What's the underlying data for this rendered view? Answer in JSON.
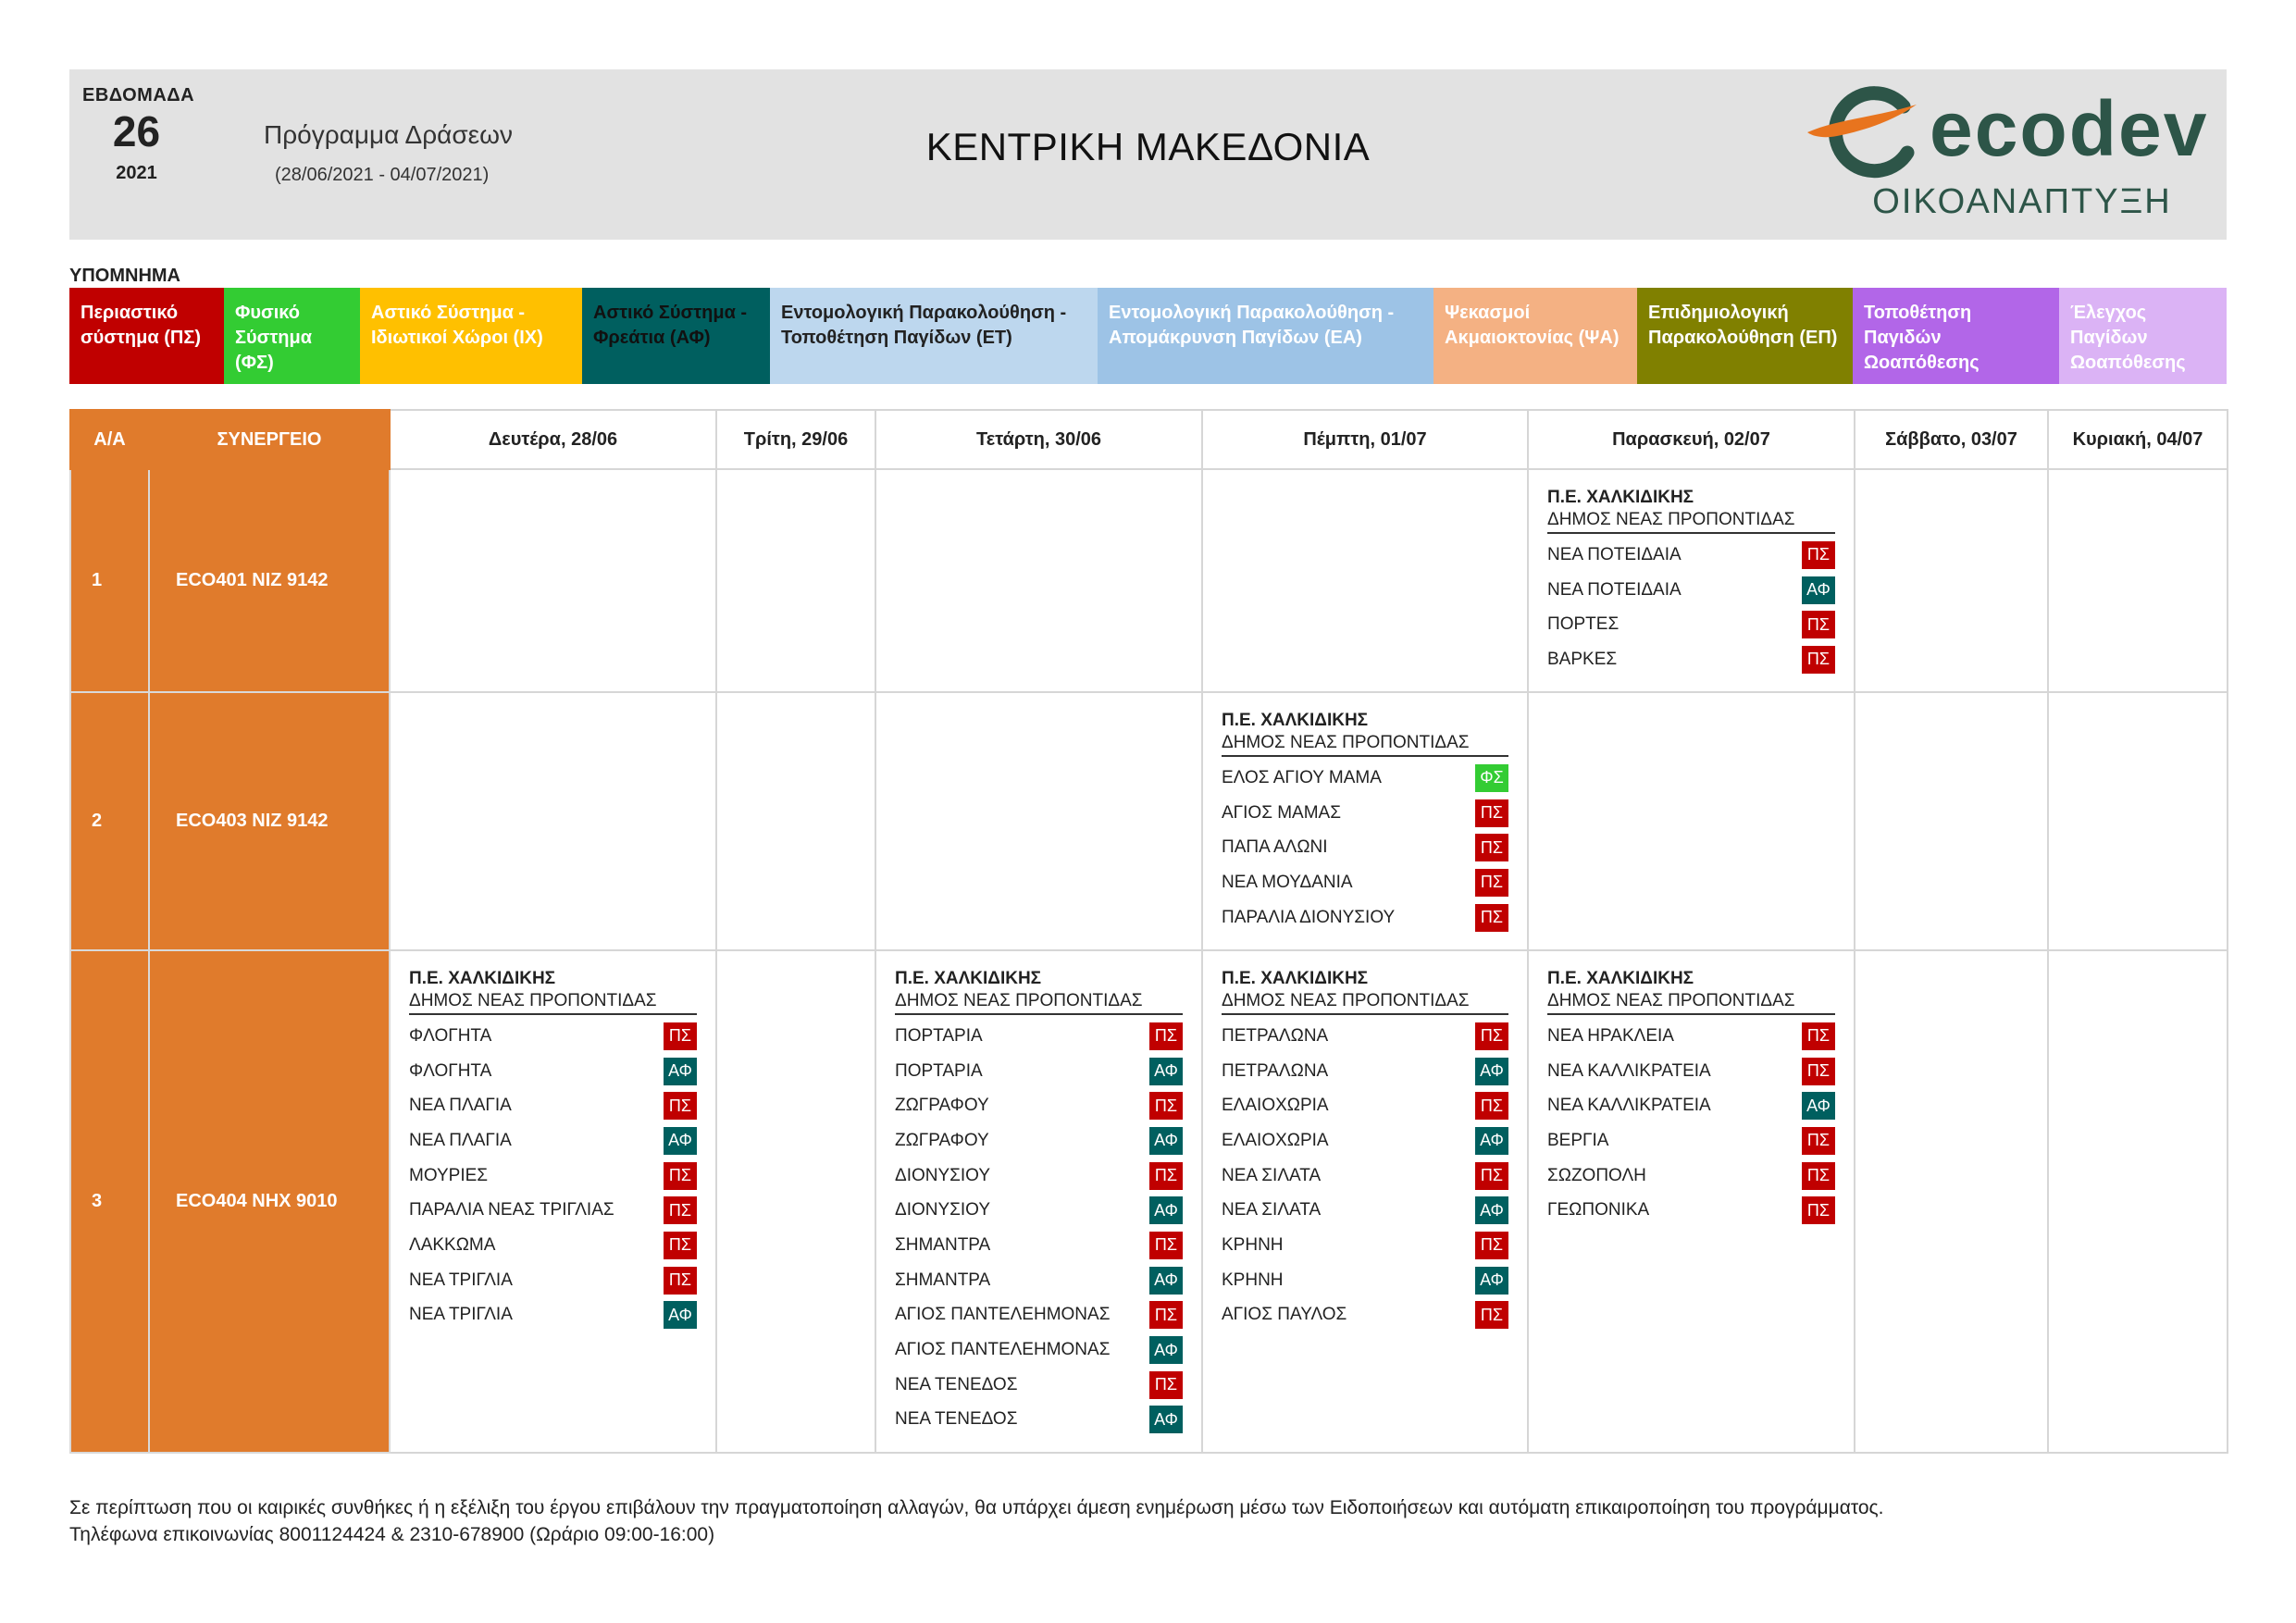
{
  "header": {
    "week_label": "ΕΒΔΟΜΑΔΑ",
    "week_number": "26",
    "year": "2021",
    "program_title": "Πρόγραμμα Δράσεων",
    "date_range": "(28/06/2021 - 04/07/2021)",
    "region": "ΚΕΝΤΡΙΚΗ ΜΑΚΕΔΟΝΙΑ",
    "logo_text": "ecodev",
    "logo_subtitle": "ΟΙΚΟΑΝΑΠΤΥΞΗ"
  },
  "legend": {
    "title": "ΥΠΟΜΝΗΜΑ",
    "items": [
      {
        "label": "Περιαστικό σύστημα (ΠΣ)",
        "bg": "#c00000",
        "fg": "#ffffff"
      },
      {
        "label": "Φυσικό Σύστημα (ΦΣ)",
        "bg": "#33cc33",
        "fg": "#ffffff"
      },
      {
        "label": "Αστικό Σύστημα - Ιδιωτικοί Χώροι (ΙΧ)",
        "bg": "#ffc000",
        "fg": "#ffffff"
      },
      {
        "label": "Αστικό Σύστημα - Φρεάτια (ΑΦ)",
        "bg": "#005f5f",
        "fg": "#111111"
      },
      {
        "label": "Εντομολογική Παρακολούθηση - Τοποθέτηση Παγίδων (ΕΤ)",
        "bg": "#bdd7ee",
        "fg": "#222222"
      },
      {
        "label": "Εντομολογική Παρακολούθηση - Απομάκρυνση Παγίδων (ΕΑ)",
        "bg": "#9dc3e6",
        "fg": "#ffffff"
      },
      {
        "label": "Ψεκασμοί Ακμαιοκτονίας (ΨΑ)",
        "bg": "#f4b183",
        "fg": "#ffffff"
      },
      {
        "label": "Επιδημιολογική Παρακολούθηση (ΕΠ)",
        "bg": "#808000",
        "fg": "#ffffff"
      },
      {
        "label": "Τοποθέτηση Παγιδών Ωοαπόθεσης",
        "bg": "#b266e8",
        "fg": "#ffffff"
      },
      {
        "label": "Έλεγχος Παγίδων Ωοαπόθεσης",
        "bg": "#dbb3f5",
        "fg": "#ffffff"
      }
    ]
  },
  "table": {
    "col_num": "Α/Α",
    "col_team": "ΣΥΝΕΡΓΕΙΟ",
    "days": [
      "Δευτέρα, 28/06",
      "Τρίτη, 29/06",
      "Τετάρτη, 30/06",
      "Πέμπτη, 01/07",
      "Παρασκευή, 02/07",
      "Σάββατο, 03/07",
      "Κυριακή, 04/07"
    ],
    "rows": [
      {
        "num": "1",
        "team": "ECO401  NIZ 9142",
        "cells": [
          null,
          null,
          null,
          null,
          {
            "pe": "Π.Ε. ΧΑΛΚΙΔΙΚΗΣ",
            "dimos": "ΔΗΜΟΣ ΝΕΑΣ ΠΡΟΠΟΝΤΙΔΑΣ",
            "acts": [
              {
                "name": "ΝΕΑ ΠΟΤΕΙΔΑΙΑ",
                "code": "ΠΣ"
              },
              {
                "name": "ΝΕΑ ΠΟΤΕΙΔΑΙΑ",
                "code": "ΑΦ"
              },
              {
                "name": "ΠΟΡΤΕΣ",
                "code": "ΠΣ"
              },
              {
                "name": "ΒΑΡΚΕΣ",
                "code": "ΠΣ"
              }
            ]
          },
          null,
          null
        ]
      },
      {
        "num": "2",
        "team": "ECO403  NIZ 9142",
        "cells": [
          null,
          null,
          null,
          {
            "pe": "Π.Ε. ΧΑΛΚΙΔΙΚΗΣ",
            "dimos": "ΔΗΜΟΣ ΝΕΑΣ ΠΡΟΠΟΝΤΙΔΑΣ",
            "acts": [
              {
                "name": "ΕΛΟΣ ΑΓΙΟΥ ΜΑΜΑ",
                "code": "ΦΣ"
              },
              {
                "name": "ΑΓΙΟΣ ΜΑΜΑΣ",
                "code": "ΠΣ"
              },
              {
                "name": "ΠΑΠΑ ΑΛΩΝΙ",
                "code": "ΠΣ"
              },
              {
                "name": "ΝΕΑ ΜΟΥΔΑΝΙΑ",
                "code": "ΠΣ"
              },
              {
                "name": "ΠΑΡΑΛΙΑ ΔΙΟΝΥΣΙΟΥ",
                "code": "ΠΣ"
              }
            ]
          },
          null,
          null,
          null
        ]
      },
      {
        "num": "3",
        "team": "ECO404  NHX 9010",
        "cells": [
          {
            "pe": "Π.Ε. ΧΑΛΚΙΔΙΚΗΣ",
            "dimos": "ΔΗΜΟΣ ΝΕΑΣ ΠΡΟΠΟΝΤΙΔΑΣ",
            "acts": [
              {
                "name": "ΦΛΟΓΗΤΑ",
                "code": "ΠΣ"
              },
              {
                "name": "ΦΛΟΓΗΤΑ",
                "code": "ΑΦ"
              },
              {
                "name": "ΝΕΑ ΠΛΑΓΙΑ",
                "code": "ΠΣ"
              },
              {
                "name": "ΝΕΑ ΠΛΑΓΙΑ",
                "code": "ΑΦ"
              },
              {
                "name": "ΜΟΥΡΙΕΣ",
                "code": "ΠΣ"
              },
              {
                "name": "ΠΑΡΑΛΙΑ ΝΕΑΣ ΤΡΙΓΛΙΑΣ",
                "code": "ΠΣ"
              },
              {
                "name": "ΛΑΚΚΩΜΑ",
                "code": "ΠΣ"
              },
              {
                "name": "ΝΕΑ ΤΡΙΓΛΙΑ",
                "code": "ΠΣ"
              },
              {
                "name": "ΝΕΑ ΤΡΙΓΛΙΑ",
                "code": "ΑΦ"
              }
            ]
          },
          null,
          {
            "pe": "Π.Ε. ΧΑΛΚΙΔΙΚΗΣ",
            "dimos": "ΔΗΜΟΣ ΝΕΑΣ ΠΡΟΠΟΝΤΙΔΑΣ",
            "acts": [
              {
                "name": "ΠΟΡΤΑΡΙΑ",
                "code": "ΠΣ"
              },
              {
                "name": "ΠΟΡΤΑΡΙΑ",
                "code": "ΑΦ"
              },
              {
                "name": "ΖΩΓΡΑΦΟΥ",
                "code": "ΠΣ"
              },
              {
                "name": "ΖΩΓΡΑΦΟΥ",
                "code": "ΑΦ"
              },
              {
                "name": "ΔΙΟΝΥΣΙΟΥ",
                "code": "ΠΣ"
              },
              {
                "name": "ΔΙΟΝΥΣΙΟΥ",
                "code": "ΑΦ"
              },
              {
                "name": "ΣΗΜΑΝΤΡΑ",
                "code": "ΠΣ"
              },
              {
                "name": "ΣΗΜΑΝΤΡΑ",
                "code": "ΑΦ"
              },
              {
                "name": "ΑΓΙΟΣ ΠΑΝΤΕΛΕΗΜΟΝΑΣ",
                "code": "ΠΣ"
              },
              {
                "name": "ΑΓΙΟΣ ΠΑΝΤΕΛΕΗΜΟΝΑΣ",
                "code": "ΑΦ"
              },
              {
                "name": "ΝΕΑ ΤΕΝΕΔΟΣ",
                "code": "ΠΣ"
              },
              {
                "name": "ΝΕΑ ΤΕΝΕΔΟΣ",
                "code": "ΑΦ"
              }
            ]
          },
          {
            "pe": "Π.Ε. ΧΑΛΚΙΔΙΚΗΣ",
            "dimos": "ΔΗΜΟΣ ΝΕΑΣ ΠΡΟΠΟΝΤΙΔΑΣ",
            "acts": [
              {
                "name": "ΠΕΤΡΑΛΩΝΑ",
                "code": "ΠΣ"
              },
              {
                "name": "ΠΕΤΡΑΛΩΝΑ",
                "code": "ΑΦ"
              },
              {
                "name": "ΕΛΑΙΟΧΩΡΙΑ",
                "code": "ΠΣ"
              },
              {
                "name": "ΕΛΑΙΟΧΩΡΙΑ",
                "code": "ΑΦ"
              },
              {
                "name": "ΝΕΑ ΣΙΛΑΤΑ",
                "code": "ΠΣ"
              },
              {
                "name": "ΝΕΑ ΣΙΛΑΤΑ",
                "code": "ΑΦ"
              },
              {
                "name": "ΚΡΗΝΗ",
                "code": "ΠΣ"
              },
              {
                "name": "ΚΡΗΝΗ",
                "code": "ΑΦ"
              },
              {
                "name": "ΑΓΙΟΣ ΠΑΥΛΟΣ",
                "code": "ΠΣ"
              }
            ]
          },
          {
            "pe": "Π.Ε. ΧΑΛΚΙΔΙΚΗΣ",
            "dimos": "ΔΗΜΟΣ ΝΕΑΣ ΠΡΟΠΟΝΤΙΔΑΣ",
            "acts": [
              {
                "name": "ΝΕΑ ΗΡΑΚΛΕΙΑ",
                "code": "ΠΣ"
              },
              {
                "name": "ΝΕΑ ΚΑΛΛΙΚΡΑΤΕΙΑ",
                "code": "ΠΣ"
              },
              {
                "name": "ΝΕΑ ΚΑΛΛΙΚΡΑΤΕΙΑ",
                "code": "ΑΦ"
              },
              {
                "name": "ΒΕΡΓΙΑ",
                "code": "ΠΣ"
              },
              {
                "name": "ΣΩΖΟΠΟΛΗ",
                "code": "ΠΣ"
              },
              {
                "name": "ΓΕΩΠΟΝΙΚΑ",
                "code": "ΠΣ"
              }
            ]
          },
          null,
          null
        ]
      }
    ]
  },
  "footer": {
    "line1": "Σε περίπτωση που οι καιρικές συνθήκες ή η εξέλιξη του έργου επιβάλουν την πραγματοποίηση αλλαγών, θα υπάρχει άμεση ενημέρωση μέσω των Ειδοποιήσεων και αυτόματη επικαιροποίηση του προγράμματος.",
    "line2": "Τηλέφωνα επικοινωνίας 8001124424 & 2310-678900 (Ωράριο 09:00-16:00)"
  }
}
